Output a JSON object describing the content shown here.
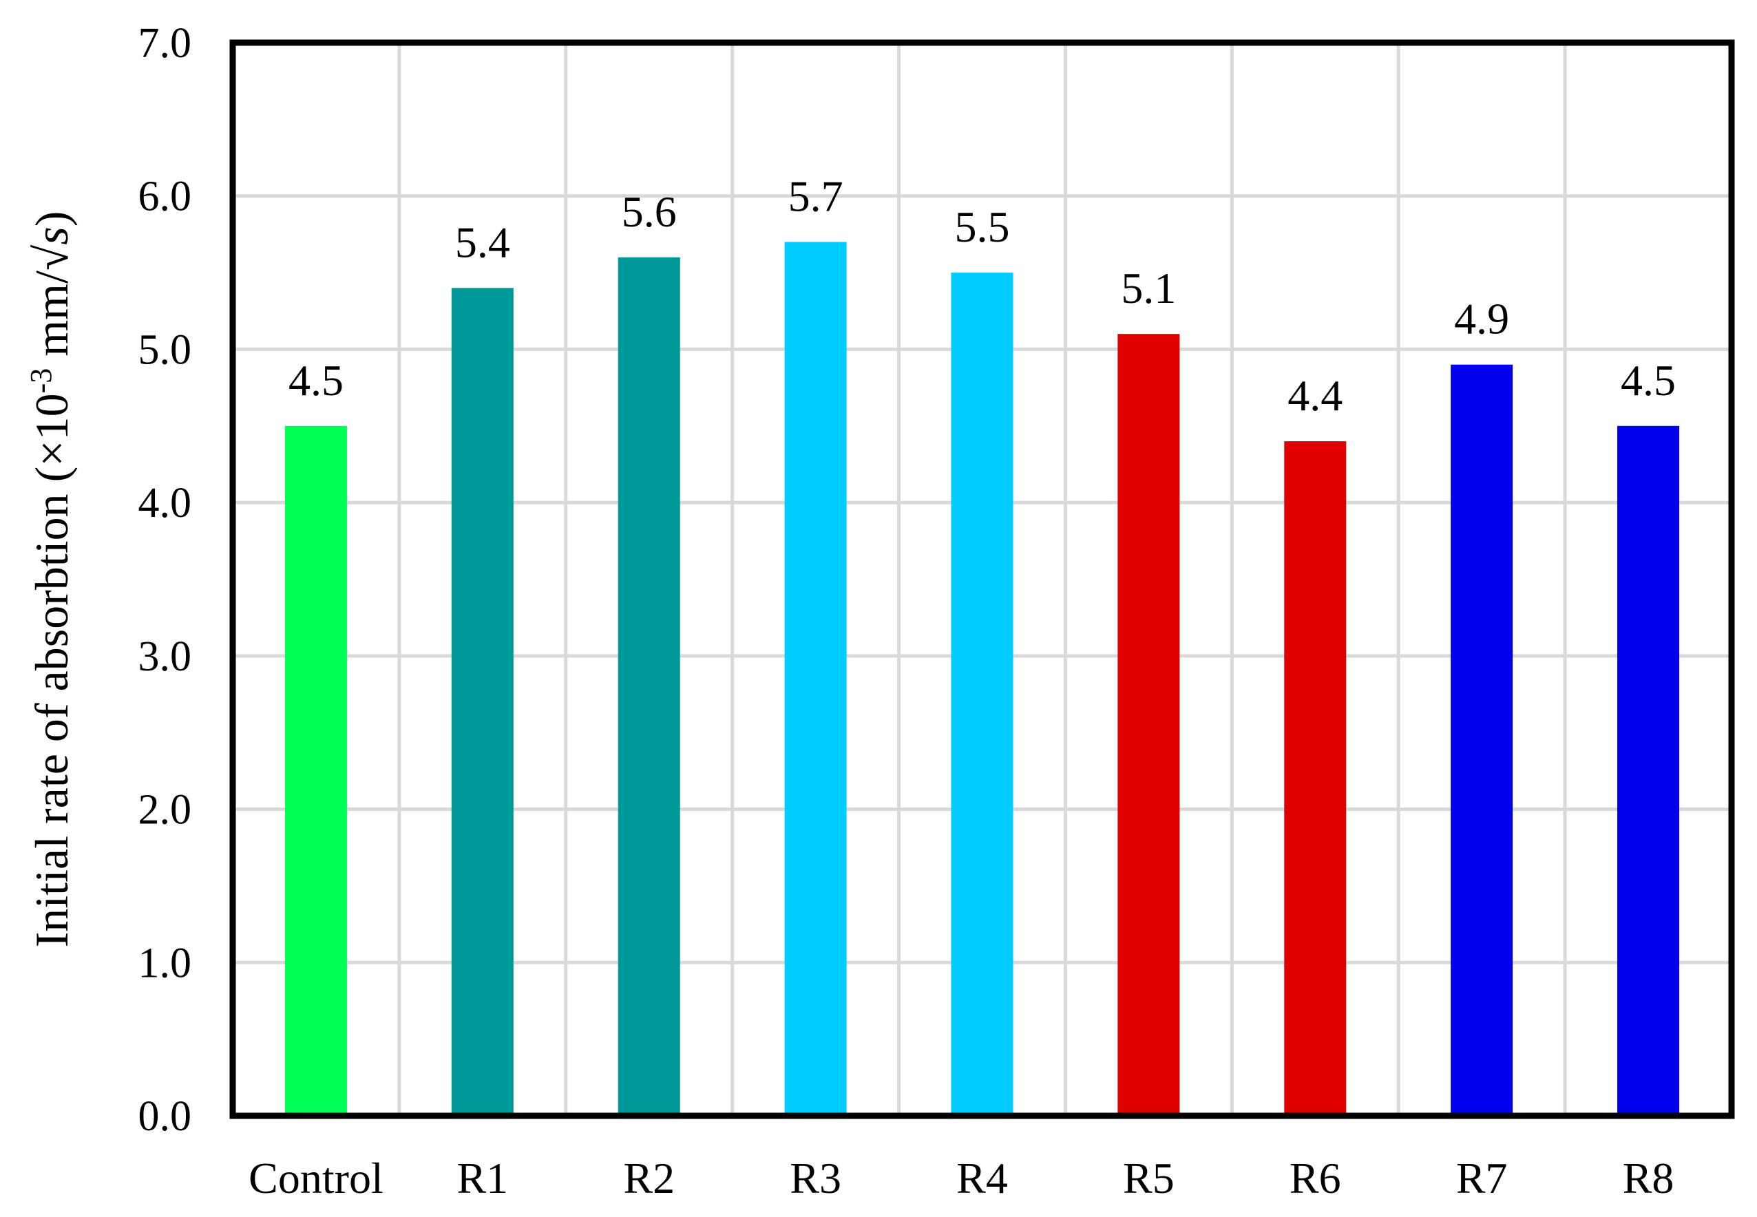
{
  "chart_data": {
    "type": "bar",
    "title": "",
    "xlabel": "",
    "ylabel": {
      "prefix": "Initial rate of absorbtion (×10",
      "superscript": "-3",
      "suffix": " mm/√",
      "italic": "s",
      "close": ")"
    },
    "ylim": [
      0,
      7
    ],
    "yticks": [
      0,
      1,
      2,
      3,
      4,
      5,
      6,
      7
    ],
    "ytick_labels": [
      "0.0",
      "1.0",
      "2.0",
      "3.0",
      "4.0",
      "5.0",
      "6.0",
      "7.0"
    ],
    "categories": [
      "Control",
      "R1",
      "R2",
      "R3",
      "R4",
      "R5",
      "R6",
      "R7",
      "R8"
    ],
    "values": [
      4.5,
      5.4,
      5.6,
      5.7,
      5.5,
      5.1,
      4.4,
      4.9,
      4.5
    ],
    "data_labels": [
      "4.5",
      "5.4",
      "5.6",
      "5.7",
      "5.5",
      "5.1",
      "4.4",
      "4.9",
      "4.5"
    ],
    "colors": [
      "#00ff55",
      "#009999",
      "#009999",
      "#00ccff",
      "#00ccff",
      "#e00000",
      "#e00000",
      "#0000ee",
      "#0000ee"
    ],
    "grid": true,
    "legend": "none"
  }
}
